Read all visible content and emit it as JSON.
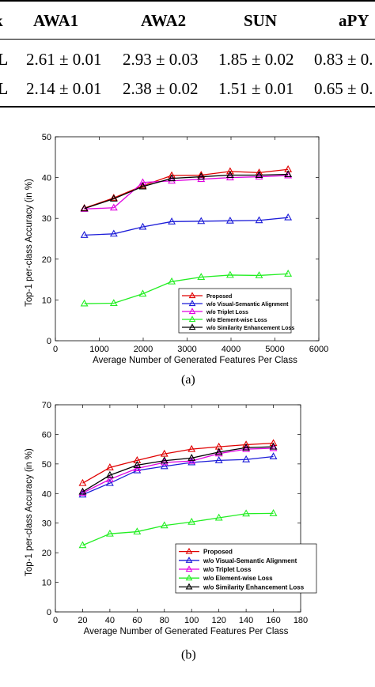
{
  "table": {
    "headers": [
      "k",
      "AWA1",
      "AWA2",
      "SUN",
      "aPY"
    ],
    "rows": [
      [
        "L",
        "2.61 ± 0.01",
        "2.93 ± 0.03",
        "1.85 ± 0.02",
        "0.83 ± 0."
      ],
      [
        "L",
        "2.14 ± 0.01",
        "2.38 ± 0.02",
        "1.51 ± 0.01",
        "0.65 ± 0."
      ]
    ]
  },
  "chart_data": [
    {
      "type": "line",
      "caption": "(a)",
      "xlabel": "Average Number of Generated Features Per Class",
      "ylabel": "Top-1 per-class Accuracy (in %)",
      "xlim": [
        0,
        6000
      ],
      "ylim": [
        0,
        50
      ],
      "xticks": [
        0,
        1000,
        2000,
        3000,
        4000,
        5000,
        6000
      ],
      "yticks": [
        0,
        10,
        20,
        30,
        40,
        50
      ],
      "grid": false,
      "legend_position": "bottom-right",
      "x": [
        660,
        1330,
        1990,
        2650,
        3320,
        3980,
        4640,
        5300
      ],
      "series": [
        {
          "name": "Proposed",
          "color": "#e00000",
          "values": [
            32.5,
            35.0,
            38.0,
            40.5,
            40.6,
            41.5,
            41.2,
            42.0
          ]
        },
        {
          "name": "w/o Visual-Semantic Alignment",
          "color": "#1c1cd8",
          "values": [
            25.9,
            26.2,
            27.9,
            29.2,
            29.3,
            29.4,
            29.5,
            30.2
          ]
        },
        {
          "name": "w/o Triplet Loss",
          "color": "#e000e0",
          "values": [
            32.3,
            32.6,
            38.8,
            39.2,
            39.6,
            40.0,
            40.2,
            40.5
          ]
        },
        {
          "name": "w/o  Element-wise Loss",
          "color": "#22ee22",
          "values": [
            9.1,
            9.2,
            11.5,
            14.5,
            15.6,
            16.1,
            16.0,
            16.4
          ]
        },
        {
          "name": "w/o Similarity Enhancement Loss",
          "color": "#000000",
          "values": [
            32.4,
            34.8,
            37.8,
            39.8,
            40.2,
            40.6,
            40.6,
            40.8
          ]
        }
      ]
    },
    {
      "type": "line",
      "caption": "(b)",
      "xlabel": "Average Number of Generated Features Per Class",
      "ylabel": "Top-1 per-class Accuracy (in %)",
      "xlim": [
        0,
        180
      ],
      "ylim": [
        0,
        70
      ],
      "xticks": [
        0,
        20,
        40,
        60,
        80,
        100,
        120,
        140,
        160,
        180
      ],
      "yticks": [
        0,
        10,
        20,
        30,
        40,
        50,
        60,
        70
      ],
      "grid": false,
      "legend_position": "bottom-right",
      "x": [
        20,
        40,
        60,
        80,
        100,
        120,
        140,
        160
      ],
      "series": [
        {
          "name": "Proposed",
          "color": "#e00000",
          "values": [
            43.5,
            48.8,
            51.2,
            53.4,
            55.0,
            55.8,
            56.5,
            57.0
          ]
        },
        {
          "name": "w/o Visual-Semantic Alignment",
          "color": "#1c1cd8",
          "values": [
            39.6,
            43.5,
            47.8,
            49.2,
            50.5,
            51.2,
            51.5,
            52.5
          ]
        },
        {
          "name": "w/o Triplet Loss",
          "color": "#e000e0",
          "values": [
            40.2,
            44.8,
            48.5,
            50.5,
            51.0,
            53.5,
            55.0,
            55.3
          ]
        },
        {
          "name": "w/o  Element-wise Loss",
          "color": "#22ee22",
          "values": [
            22.5,
            26.4,
            27.1,
            29.2,
            30.4,
            31.8,
            33.2,
            33.3
          ]
        },
        {
          "name": "w/o Similarity Enhancement Loss",
          "color": "#000000",
          "values": [
            40.6,
            46.2,
            49.6,
            51.1,
            52.0,
            54.0,
            55.5,
            55.8
          ]
        }
      ]
    }
  ]
}
